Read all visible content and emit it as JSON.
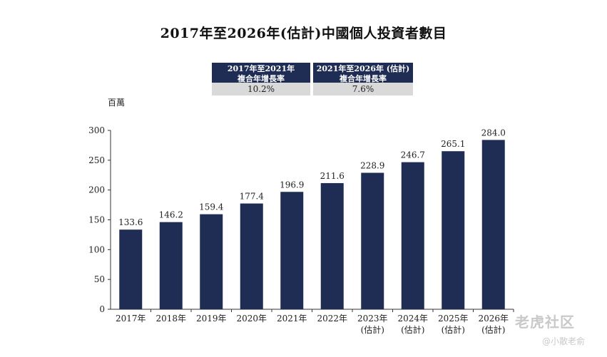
{
  "chart_data": {
    "type": "bar",
    "title": "2017年至2026年(估計)中國個人投資者數目",
    "ylabel": "百萬",
    "xlabel": "",
    "ylim": [
      0,
      300
    ],
    "yticks": [
      0,
      50,
      100,
      150,
      200,
      250,
      300
    ],
    "categories": [
      {
        "year": "2017年",
        "note": ""
      },
      {
        "year": "2018年",
        "note": ""
      },
      {
        "year": "2019年",
        "note": ""
      },
      {
        "year": "2020年",
        "note": ""
      },
      {
        "year": "2021年",
        "note": ""
      },
      {
        "year": "2022年",
        "note": ""
      },
      {
        "year": "2023年",
        "note": "(估計)"
      },
      {
        "year": "2024年",
        "note": "(估計)"
      },
      {
        "year": "2025年",
        "note": "(估計)"
      },
      {
        "year": "2026年",
        "note": "(估計)"
      }
    ],
    "values": [
      133.6,
      146.2,
      159.4,
      177.4,
      196.9,
      211.6,
      228.9,
      246.7,
      265.1,
      284.0
    ],
    "value_labels": [
      "133.6",
      "146.2",
      "159.4",
      "177.4",
      "196.9",
      "211.6",
      "228.9",
      "246.7",
      "265.1",
      "284.0"
    ],
    "cagr": [
      {
        "line1": "2017年至2021年",
        "line2": "複合年增長率",
        "value": "10.2%"
      },
      {
        "line1": "2021年至2026年 (估計)",
        "line2": "複合年增長率",
        "value": "7.6%"
      }
    ],
    "bar_color": "#1f2d54"
  },
  "watermark": {
    "main": "老虎社区",
    "sub": "@小散老俞"
  }
}
